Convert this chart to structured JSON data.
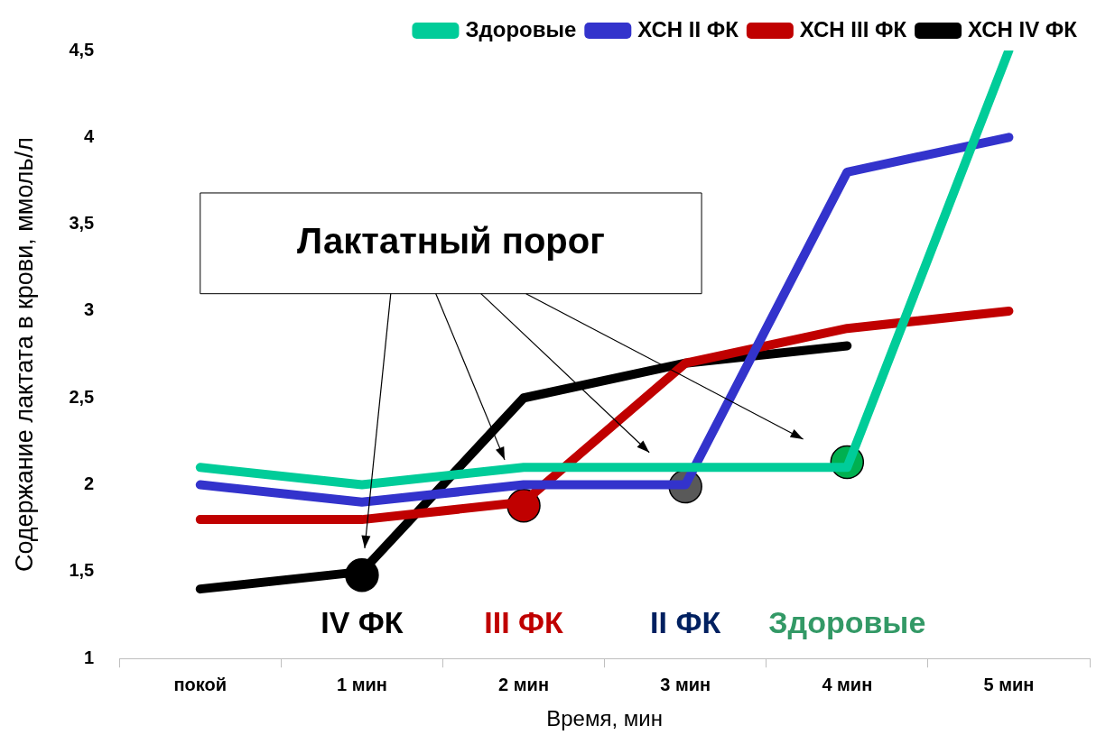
{
  "chart_data": {
    "type": "line",
    "xlabel": "Время, мин",
    "ylabel": "Содержание лактата в крови, ммоль/л",
    "categories": [
      "покой",
      "1 мин",
      "2 мин",
      "3 мин",
      "4 мин",
      "5 мин"
    ],
    "series": [
      {
        "name": "Здоровые",
        "color": "#00cc99",
        "values": [
          2.1,
          2.0,
          2.1,
          2.1,
          2.1,
          4.5
        ]
      },
      {
        "name": "ХСН II ФК",
        "color": "#3333cc",
        "values": [
          2.0,
          1.9,
          2.0,
          2.0,
          3.8,
          4.0
        ]
      },
      {
        "name": "ХСН III ФК",
        "color": "#c00000",
        "values": [
          1.8,
          1.8,
          1.9,
          2.7,
          2.9,
          3.0
        ]
      },
      {
        "name": "ХСН IV ФК",
        "color": "#000000",
        "values": [
          1.4,
          1.5,
          2.5,
          2.7,
          2.8,
          null
        ]
      },
      {
        "type": "scatter",
        "marker": "circle",
        "x": [
          "1 мин",
          "2 мин",
          "3 мин",
          "4 мин"
        ],
        "values": [
          1.48,
          1.88,
          1.99,
          2.13
        ],
        "colors": [
          "#000000",
          "#c00000",
          "#595959",
          "#00b050"
        ]
      }
    ],
    "ylim": [
      1,
      4.5
    ],
    "yticks": [
      1,
      {
        "value": 1.5,
        "label": "1,5"
      },
      2,
      {
        "value": 2.5,
        "label": "2,5"
      },
      3,
      {
        "value": 3.5,
        "label": "3,5"
      },
      4,
      {
        "value": 4.5,
        "label": "4,5"
      }
    ],
    "grid": false,
    "legend": "top right",
    "marker": "none",
    "line_style": "solid",
    "annotations": [
      "Лактатный порог",
      "IV ФК",
      "III ФК",
      "II ФК",
      "Здоровые"
    ]
  }
}
